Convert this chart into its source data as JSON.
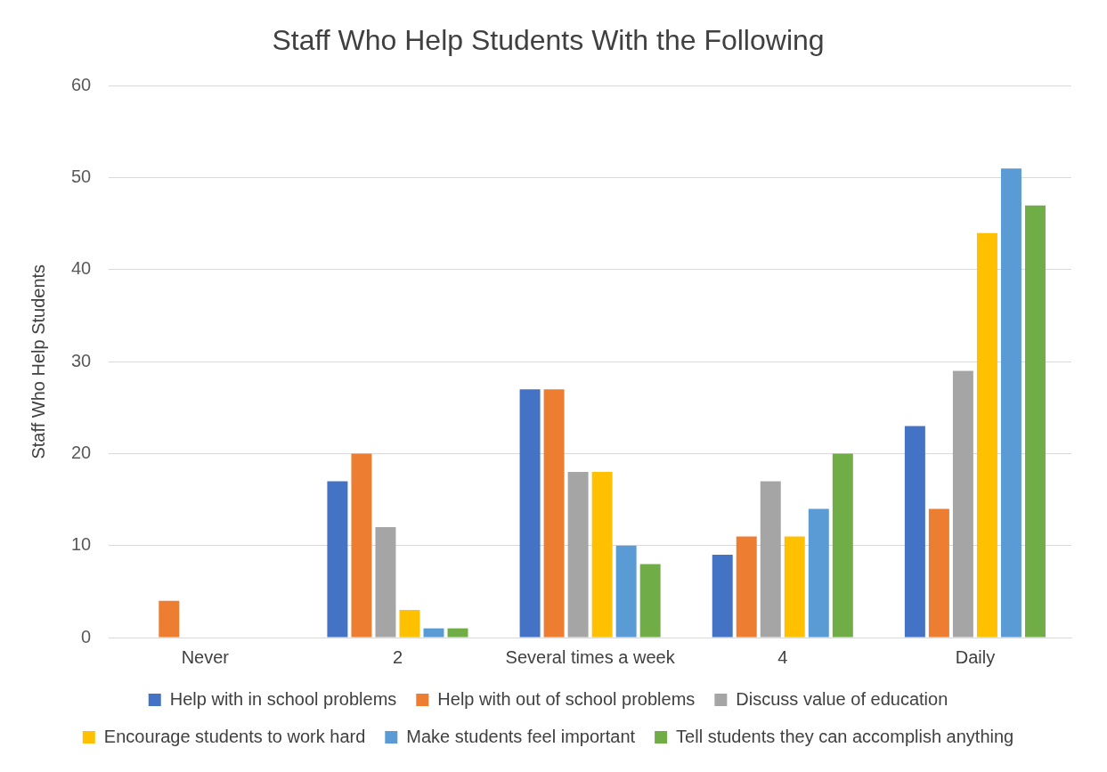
{
  "chart_data": {
    "type": "bar",
    "title": "Staff Who Help Students With the Following",
    "ylabel": "Staff Who Help Students",
    "categories": [
      "Never",
      "2",
      "Several times a week",
      "4",
      "Daily"
    ],
    "series": [
      {
        "name": "Help with in school problems",
        "color": "#4472c4",
        "values": [
          0,
          17,
          27,
          9,
          23
        ]
      },
      {
        "name": "Help with out of school problems",
        "color": "#ed7d31",
        "values": [
          4,
          20,
          27,
          11,
          14
        ]
      },
      {
        "name": "Discuss value of education",
        "color": "#a5a5a5",
        "values": [
          0,
          12,
          18,
          17,
          29
        ]
      },
      {
        "name": "Encourage students to work hard",
        "color": "#ffc000",
        "values": [
          0,
          3,
          18,
          11,
          44
        ]
      },
      {
        "name": "Make students feel important",
        "color": "#5b9bd5",
        "values": [
          0,
          1,
          10,
          14,
          51
        ]
      },
      {
        "name": "Tell students they can accomplish anything",
        "color": "#70ad47",
        "values": [
          0,
          1,
          8,
          20,
          47
        ]
      }
    ],
    "ylim": [
      0,
      60
    ],
    "yticks": [
      0,
      10,
      20,
      30,
      40,
      50,
      60
    ],
    "grid": "y",
    "legend": "bottom"
  }
}
